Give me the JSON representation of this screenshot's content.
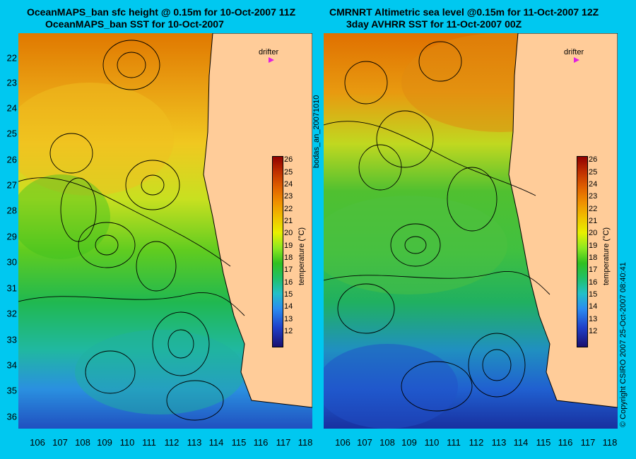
{
  "left_panel": {
    "title_line1": "OceanMAPS_ban sfc height @ 0.15m for 10-Oct-2007 11Z",
    "title_line2": "OceanMAPS_ban SST for 10-Oct-2007",
    "drifter_label": "drifter",
    "colorbar_label": "temperature (°C)"
  },
  "right_panel": {
    "title_line1": "CMRNRT Altimetric sea level  @0.15m  for 11-Oct-2007 12Z",
    "title_line2": "3day AVHRR SST for 11-Oct-2007 00Z",
    "drifter_label": "drifter",
    "colorbar_label": "temperature (°C)"
  },
  "middle_vertical_text": "bodas_an_20071010",
  "copyright_vertical_text": "© Copyright CSIRO 2007  25-Oct-2007 08:40:41",
  "latitude_labels": [
    "22",
    "23",
    "24",
    "25",
    "26",
    "27",
    "28",
    "29",
    "30",
    "31",
    "32",
    "33",
    "34",
    "35",
    "36"
  ],
  "longitude_labels": [
    "106",
    "107",
    "108",
    "109",
    "110",
    "111",
    "112",
    "113",
    "114",
    "115",
    "116",
    "117",
    "118"
  ],
  "colorbar_ticks": [
    "26",
    "25",
    "24",
    "23",
    "22",
    "21",
    "20",
    "19",
    "18",
    "17",
    "16",
    "15",
    "14",
    "13",
    "12"
  ],
  "colors": {
    "background": "#00c8f0",
    "land": "#ffcc99"
  }
}
